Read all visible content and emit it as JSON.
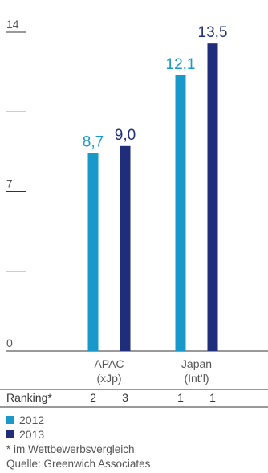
{
  "chart_data": {
    "type": "bar",
    "categories": [
      "APAC (xJp)",
      "Japan (Int’l)"
    ],
    "category_lines": [
      [
        "APAC",
        "(xJp)"
      ],
      [
        "Japan",
        "(Int’l)"
      ]
    ],
    "series": [
      {
        "name": "2012",
        "values": [
          8.7,
          12.1
        ],
        "labels": [
          "8,7",
          "12,1"
        ],
        "color": "#1899c9",
        "ranking": "2"
      },
      {
        "name": "2013",
        "values": [
          9.0,
          13.5
        ],
        "labels": [
          "9,0",
          "13,5"
        ],
        "color": "#1f2d7b",
        "ranking": "3"
      }
    ],
    "ranking": {
      "label": "Ranking*",
      "values": [
        [
          "2",
          "3"
        ],
        [
          "1",
          "1"
        ]
      ]
    },
    "ylim": [
      0,
      14
    ],
    "yticks": [
      0,
      3.5,
      7,
      10.5,
      14
    ],
    "ytick_labels": [
      "0",
      "",
      "7",
      "",
      "14"
    ],
    "footnote": "* im Wettbewerbsvergleich",
    "source": "Quelle: Greenwich Associates"
  },
  "colors": {
    "axis": "#333333",
    "text": "#555555"
  }
}
